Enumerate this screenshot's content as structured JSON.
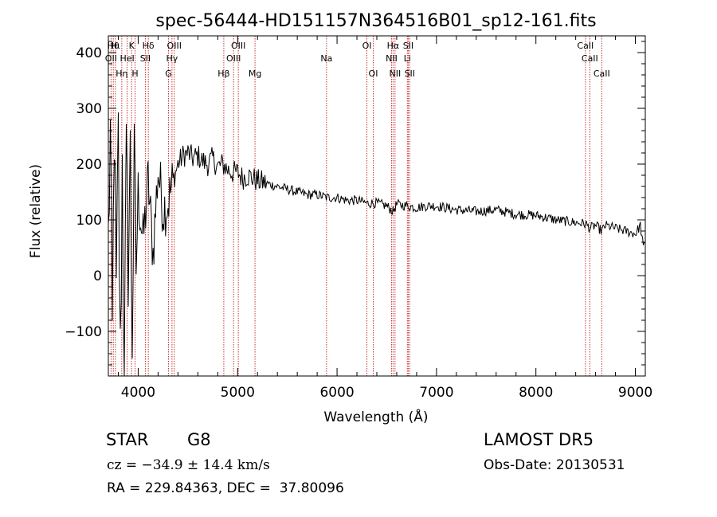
{
  "chart_data": {
    "type": "line",
    "title": "spec-56444-HD151157N364516B01_sp12-161.fits",
    "xlabel": "Wavelength (Å)",
    "ylabel": "Flux (relative)",
    "xlim": [
      3700,
      9100
    ],
    "ylim": [
      -180,
      430
    ],
    "x_ticks": [
      4000,
      5000,
      6000,
      7000,
      8000,
      9000
    ],
    "x_tick_labels": [
      "4000",
      "5000",
      "6000",
      "7000",
      "8000",
      "9000"
    ],
    "y_ticks": [
      -100,
      0,
      100,
      200,
      300,
      400
    ],
    "y_tick_labels": [
      "−100",
      "0",
      "100",
      "200",
      "300",
      "400"
    ],
    "grid": false,
    "series": [
      {
        "color": "#000000",
        "x": [
          3700,
          3720,
          3740,
          3760,
          3780,
          3800,
          3820,
          3840,
          3860,
          3880,
          3900,
          3920,
          3940,
          3960,
          3980,
          4000,
          4050,
          4100,
          4150,
          4200,
          4250,
          4300,
          4350,
          4400,
          4450,
          4500,
          4550,
          4600,
          4650,
          4700,
          4750,
          4800,
          4850,
          4900,
          4950,
          5000,
          5050,
          5100,
          5150,
          5200,
          5300,
          5400,
          5500,
          5600,
          5700,
          5800,
          5900,
          6000,
          6100,
          6200,
          6300,
          6400,
          6500,
          6563,
          6600,
          6700,
          6800,
          6900,
          7000,
          7200,
          7400,
          7600,
          7800,
          8000,
          8200,
          8400,
          8500,
          8542,
          8600,
          8662,
          8700,
          8800,
          8900,
          9000,
          9050,
          9080,
          9100
        ],
        "y": [
          60,
          250,
          -120,
          280,
          -50,
          240,
          -160,
          200,
          -170,
          190,
          30,
          210,
          -100,
          180,
          20,
          150,
          60,
          170,
          40,
          190,
          120,
          130,
          170,
          200,
          215,
          220,
          210,
          215,
          205,
          200,
          210,
          195,
          200,
          190,
          185,
          185,
          175,
          180,
          175,
          170,
          165,
          160,
          155,
          150,
          145,
          145,
          140,
          140,
          135,
          135,
          130,
          130,
          125,
          115,
          128,
          125,
          122,
          125,
          125,
          118,
          115,
          118,
          110,
          108,
          100,
          95,
          93,
          85,
          90,
          80,
          90,
          85,
          80,
          75,
          90,
          50,
          60
        ]
      }
    ],
    "lines": [
      {
        "wave": 3727,
        "label": "OII",
        "row": 2
      },
      {
        "wave": 3750,
        "label": "Hθ",
        "row": 1
      },
      {
        "wave": 3771,
        "label": "Hι",
        "row": 1
      },
      {
        "wave": 3835,
        "label": "Hη",
        "row": 3
      },
      {
        "wave": 3889,
        "label": "HeI",
        "row": 2
      },
      {
        "wave": 3934,
        "label": "K",
        "row": 1
      },
      {
        "wave": 3969,
        "label": "H",
        "row": 3
      },
      {
        "wave": 4072,
        "label": "SII",
        "row": 2
      },
      {
        "wave": 4102,
        "label": "Hδ",
        "row": 1
      },
      {
        "wave": 4305,
        "label": "G",
        "row": 3
      },
      {
        "wave": 4340,
        "label": "Hγ",
        "row": 2
      },
      {
        "wave": 4363,
        "label": "OIII",
        "row": 1
      },
      {
        "wave": 4861,
        "label": "Hβ",
        "row": 3
      },
      {
        "wave": 4959,
        "label": "OIII",
        "row": 2
      },
      {
        "wave": 5007,
        "label": "OIII",
        "row": 1
      },
      {
        "wave": 5175,
        "label": "Mg",
        "row": 3
      },
      {
        "wave": 5894,
        "label": "Na",
        "row": 2
      },
      {
        "wave": 6300,
        "label": "OI",
        "row": 1
      },
      {
        "wave": 6364,
        "label": "OI",
        "row": 3
      },
      {
        "wave": 6548,
        "label": "NII",
        "row": 2
      },
      {
        "wave": 6563,
        "label": "Hα",
        "row": 1
      },
      {
        "wave": 6583,
        "label": "NII",
        "row": 3
      },
      {
        "wave": 6707,
        "label": "Li",
        "row": 2
      },
      {
        "wave": 6716,
        "label": "SII",
        "row": 1
      },
      {
        "wave": 6731,
        "label": "SII",
        "row": 3
      },
      {
        "wave": 8498,
        "label": "CaII",
        "row": 1
      },
      {
        "wave": 8542,
        "label": "CaII",
        "row": 2
      },
      {
        "wave": 8662,
        "label": "CaII",
        "row": 3
      }
    ],
    "line_color": "#c83232"
  },
  "info": {
    "object_class": "STAR",
    "subclass": "G8",
    "survey": "LAMOST DR5",
    "redshift": "cz = −34.9 ± 14.4 km/s",
    "obs_date": "Obs-Date: 20130531",
    "coords": "RA = 229.84363, DEC =  37.80096"
  }
}
